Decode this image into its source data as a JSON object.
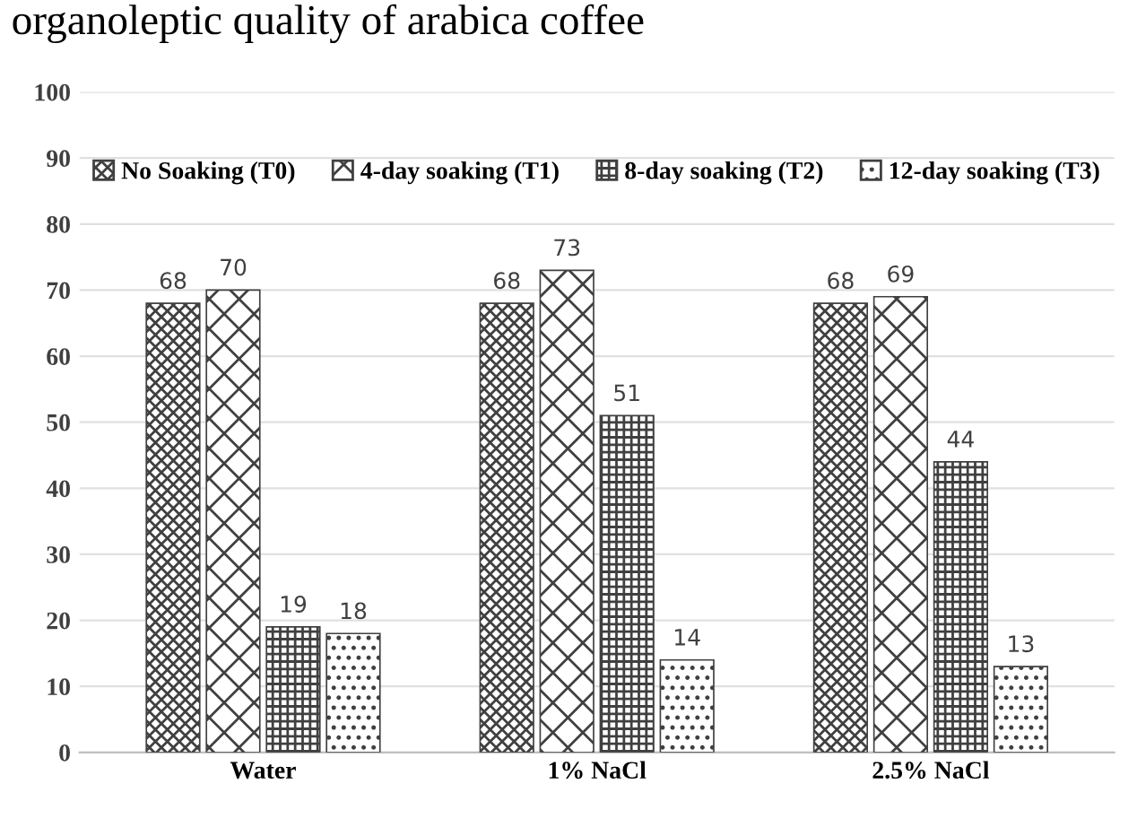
{
  "chart_data": {
    "type": "bar",
    "title": "organoleptic quality of arabica coffee",
    "categories": [
      "Water",
      "1% NaCl",
      "2.5% NaCl"
    ],
    "series": [
      {
        "name": "No Soaking (T0)",
        "color": "#404040",
        "values": [
          68,
          68,
          68
        ]
      },
      {
        "name": "4-day soaking (T1)",
        "color": "#404040",
        "values": [
          70,
          73,
          69
        ]
      },
      {
        "name": "8-day soaking (T2)",
        "color": "#404040",
        "values": [
          19,
          51,
          44
        ]
      },
      {
        "name": "12-day soaking (T3)",
        "color": "#404040",
        "values": [
          18,
          14,
          13
        ]
      }
    ],
    "ylim": [
      0,
      100
    ],
    "yticks": [
      0,
      10,
      20,
      30,
      40,
      50,
      60,
      70,
      80,
      90,
      100
    ],
    "grid": "y",
    "legend": "top",
    "data_labels": true
  }
}
